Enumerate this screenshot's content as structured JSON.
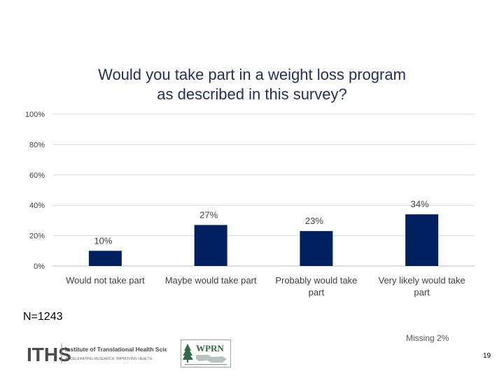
{
  "slide": {
    "n_label": "N=1243",
    "missing_note": "Missing 2%",
    "page_number": "19"
  },
  "logos": {
    "iths": {
      "mark": "ITHS",
      "name": "Institute of Translational Health Sciences",
      "tagline": "ACCELERATING RESEARCH. IMPROVING HEALTH."
    },
    "wprn": {
      "mark": "WPRN"
    }
  },
  "colors": {
    "bar": "#002060",
    "grid": "#d9d9d9",
    "axis": "#bfbfbf",
    "title": "#1f2f5c"
  },
  "chart_data": {
    "type": "bar",
    "title_lines": [
      "Would you take part in a weight loss program",
      "as described in this survey?"
    ],
    "categories": [
      [
        "Would not take part"
      ],
      [
        "Maybe would take part"
      ],
      [
        "Probably would take",
        "part"
      ],
      [
        "Very likely would take",
        "part"
      ]
    ],
    "values": [
      10,
      27,
      23,
      34
    ],
    "data_labels": [
      "10%",
      "27%",
      "23%",
      "34%"
    ],
    "y_ticks": [
      0,
      20,
      40,
      60,
      80,
      100
    ],
    "y_tick_labels": [
      "0%",
      "20%",
      "40%",
      "60%",
      "80%",
      "100%"
    ],
    "ylim": [
      0,
      100
    ],
    "xlabel": "",
    "ylabel": "",
    "grid": true,
    "legend": "none"
  }
}
